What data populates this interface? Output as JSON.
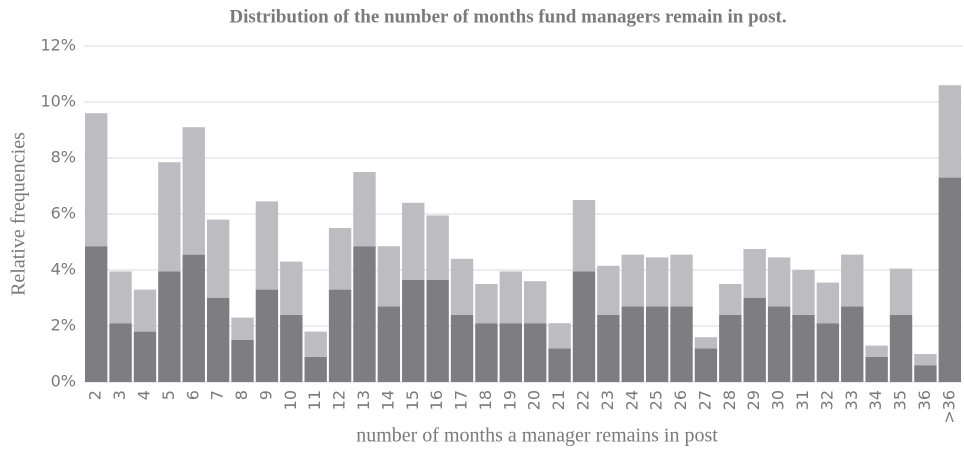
{
  "chart_data": {
    "type": "stacked_bar",
    "title": "Distribution of the number of months fund managers remain in post.",
    "x_label": "number of months a manager remains in post",
    "y_label": "Relative frequencies",
    "categories": [
      "2",
      "3",
      "4",
      "5",
      "6",
      "7",
      "8",
      "9",
      "10",
      "11",
      "12",
      "13",
      "14",
      "15",
      "16",
      "17",
      "18",
      "19",
      "20",
      "21",
      "22",
      "23",
      "24",
      "25",
      "26",
      "27",
      "28",
      "29",
      "30",
      "31",
      "32",
      "33",
      "34",
      "35",
      "36",
      ">36"
    ],
    "series": [
      {
        "color": "#7e7e82",
        "values": [
          4.85,
          2.1,
          1.8,
          3.95,
          4.55,
          3.0,
          1.5,
          3.3,
          2.4,
          0.9,
          3.3,
          4.85,
          2.7,
          3.65,
          3.65,
          2.4,
          2.1,
          2.1,
          2.1,
          1.2,
          3.95,
          2.4,
          2.7,
          2.7,
          2.7,
          1.2,
          2.4,
          3.0,
          2.7,
          2.4,
          2.1,
          2.7,
          0.9,
          2.4,
          0.6,
          7.3
        ]
      },
      {
        "color": "#bdbdc1",
        "values": [
          4.75,
          1.85,
          1.5,
          3.9,
          4.55,
          2.8,
          0.8,
          3.15,
          1.9,
          0.9,
          2.2,
          2.65,
          2.15,
          2.75,
          2.3,
          2.0,
          1.4,
          1.85,
          1.5,
          0.9,
          2.55,
          1.75,
          1.85,
          1.75,
          1.85,
          0.4,
          1.1,
          1.75,
          1.75,
          1.6,
          1.45,
          1.85,
          0.4,
          1.65,
          0.4,
          3.3
        ]
      }
    ],
    "ylim": [
      0,
      12
    ],
    "yticks": [
      {
        "value": 0,
        "label": "0%"
      },
      {
        "value": 2,
        "label": "2%"
      },
      {
        "value": 4,
        "label": "4%"
      },
      {
        "value": 6,
        "label": "6%"
      },
      {
        "value": 8,
        "label": "8%"
      },
      {
        "value": 10,
        "label": "10%"
      },
      {
        "value": 12,
        "label": "12%"
      }
    ],
    "grid": true
  }
}
